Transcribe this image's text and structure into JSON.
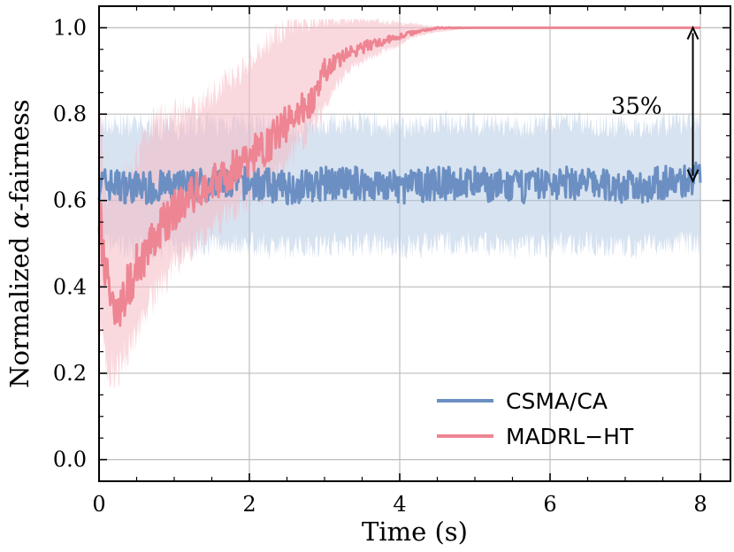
{
  "chart_data": {
    "type": "line",
    "xlabel": "Time (s)",
    "ylabel_prefix": "Normalized ",
    "ylabel_symbol": "α",
    "ylabel_suffix": "-fairness",
    "xlim": [
      0,
      8.4
    ],
    "ylim": [
      -0.05,
      1.05
    ],
    "xticks": [
      0,
      2,
      4,
      6,
      8
    ],
    "xtick_labels": [
      "0",
      "2",
      "4",
      "6",
      "8"
    ],
    "yticks": [
      0.0,
      0.2,
      0.4,
      0.6,
      0.8,
      1.0
    ],
    "ytick_labels": [
      "0.0",
      "0.2",
      "0.4",
      "0.6",
      "0.8",
      "1.0"
    ],
    "grid": true,
    "legend_position": "bottom-right",
    "series": [
      {
        "name": "CSMA/CA",
        "color": "#6b8fc2",
        "band_color": "#a9c2df",
        "x": [
          0,
          0.5,
          1,
          1.5,
          2,
          2.5,
          3,
          3.5,
          4,
          4.5,
          5,
          5.5,
          6,
          6.5,
          7,
          7.5,
          8
        ],
        "y": [
          0.64,
          0.63,
          0.63,
          0.64,
          0.64,
          0.63,
          0.64,
          0.64,
          0.63,
          0.64,
          0.64,
          0.63,
          0.64,
          0.64,
          0.63,
          0.64,
          0.65
        ],
        "band_low": [
          0.5,
          0.49,
          0.49,
          0.5,
          0.5,
          0.49,
          0.5,
          0.5,
          0.49,
          0.5,
          0.5,
          0.49,
          0.5,
          0.5,
          0.49,
          0.5,
          0.5
        ],
        "band_high": [
          0.78,
          0.77,
          0.77,
          0.78,
          0.78,
          0.77,
          0.78,
          0.78,
          0.77,
          0.78,
          0.78,
          0.77,
          0.78,
          0.78,
          0.77,
          0.78,
          0.78
        ]
      },
      {
        "name": "MADRL−HT",
        "color": "#ee8593",
        "band_color": "#f5b9c2",
        "x": [
          0,
          0.1,
          0.2,
          0.3,
          0.5,
          0.7,
          1.0,
          1.3,
          1.6,
          2.0,
          2.3,
          2.6,
          2.9,
          3.0,
          3.3,
          3.6,
          4.0,
          4.2,
          4.5,
          5,
          6,
          7,
          8
        ],
        "y": [
          0.56,
          0.42,
          0.37,
          0.36,
          0.45,
          0.5,
          0.58,
          0.62,
          0.65,
          0.7,
          0.74,
          0.8,
          0.84,
          0.9,
          0.94,
          0.96,
          0.98,
          0.99,
          1.0,
          1.0,
          1.0,
          1.0,
          1.0
        ],
        "band_low": [
          0.3,
          0.22,
          0.2,
          0.22,
          0.3,
          0.37,
          0.45,
          0.5,
          0.55,
          0.6,
          0.64,
          0.72,
          0.78,
          0.82,
          0.9,
          0.93,
          0.96,
          0.98,
          0.99,
          1.0,
          1.0,
          1.0,
          1.0
        ],
        "band_high": [
          0.8,
          0.62,
          0.62,
          0.64,
          0.7,
          0.78,
          0.8,
          0.82,
          0.86,
          0.92,
          0.98,
          1.02,
          1.02,
          1.02,
          1.02,
          1.02,
          1.01,
          1.01,
          1.0,
          1.0,
          1.0,
          1.0,
          1.0
        ]
      }
    ],
    "annotation": {
      "text": "35%",
      "arrow_x": 7.9,
      "arrow_y_top": 1.0,
      "arrow_y_bottom": 0.645,
      "text_x": 7.15,
      "text_y": 0.82
    }
  }
}
